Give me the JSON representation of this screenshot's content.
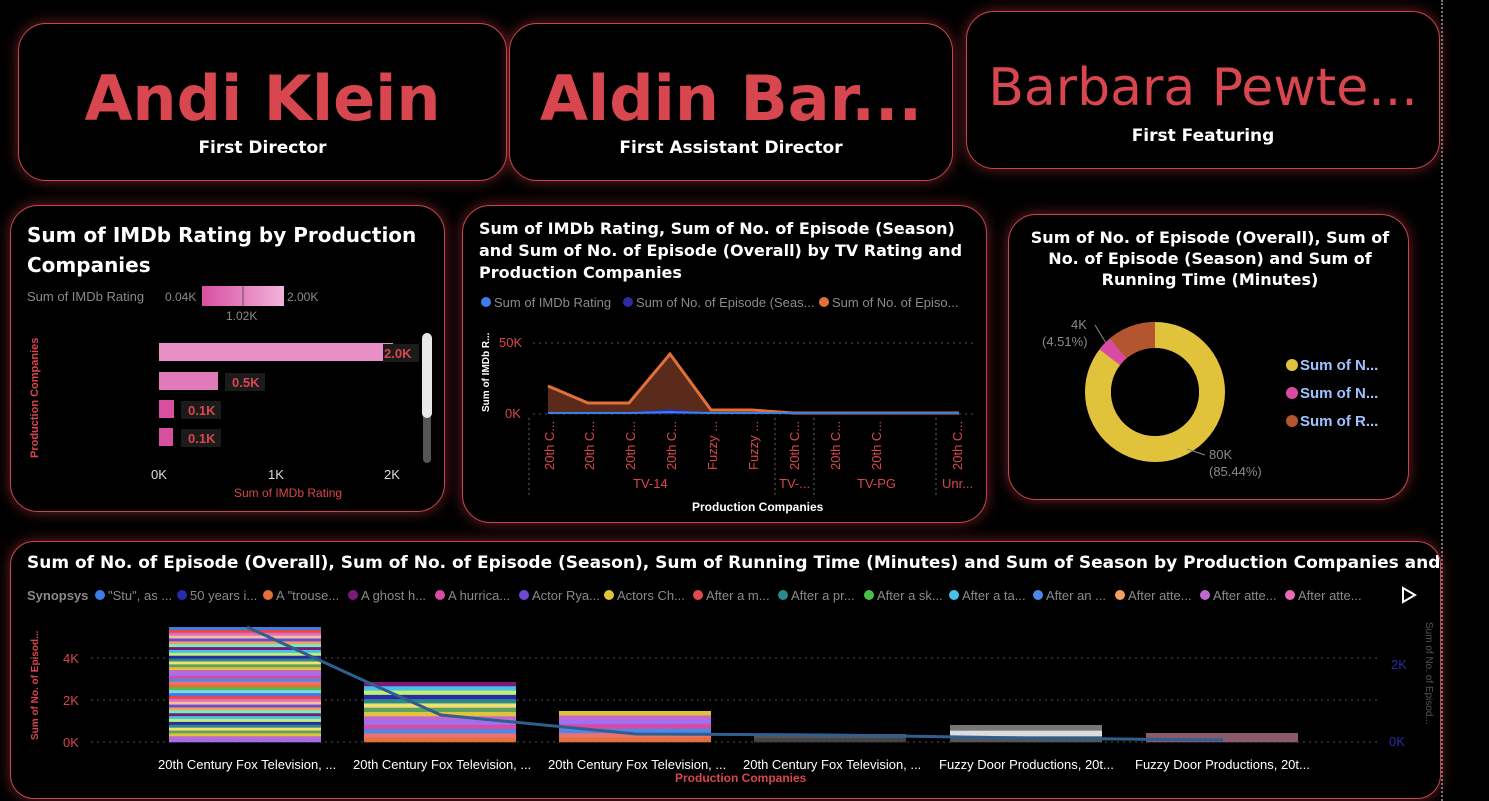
{
  "kpis": [
    {
      "value": "Andi Klein",
      "label": "First Director"
    },
    {
      "value": "Aldin Bar...",
      "label": "First Assistant Director"
    },
    {
      "value": "Barbara Pewte...",
      "label": "First Featuring"
    }
  ],
  "imdb_bar": {
    "title": "Sum of IMDb Rating by Production Companies",
    "gradient_legend": {
      "label": "Sum of IMDb Rating",
      "min": "0.04K",
      "mid": "1.02K",
      "max": "2.00K"
    },
    "ylabel": "Production Companies",
    "xlabel": "Sum of IMDb Rating",
    "xticks": [
      "0K",
      "1K",
      "2K"
    ],
    "data_labels": [
      "2.0K",
      "0.5K",
      "0.1K",
      "0.1K"
    ],
    "colors": {
      "bar_light": "#e98fc8",
      "bar_dark": "#d84fa0"
    }
  },
  "area_chart": {
    "title": "Sum of IMDb Rating, Sum of No. of Episode (Season) and Sum of No. of Episode (Overall) by TV Rating and Production Companies",
    "legend": [
      {
        "label": "Sum of IMDb Rating",
        "color": "#3a7ee8"
      },
      {
        "label": "Sum of No. of Episode (Seas...",
        "color": "#2c2ca0"
      },
      {
        "label": "Sum of No. of Episo...",
        "color": "#e2703a"
      }
    ],
    "ylabel": "Sum of IMDb R...",
    "yticks": [
      "50K",
      "0K"
    ],
    "xlabel": "Production Companies",
    "x_tick_labels": [
      "20th C...",
      "20th C...",
      "20th C...",
      "20th C...",
      "Fuzzy ...",
      "Fuzzy ...",
      "20th C...",
      "20th C...",
      "20th C...",
      "20th C..."
    ],
    "groups": [
      "TV-14",
      "TV-...",
      "TV-PG",
      "Unr..."
    ]
  },
  "donut": {
    "title": "Sum of No. of Episode (Overall), Sum of No. of Episode (Season) and Sum of Running Time (Minutes)",
    "slice_labels": [
      {
        "value": "4K",
        "pct": "(4.51%)"
      },
      {
        "value": "80K",
        "pct": "(85.44%)"
      }
    ],
    "legend": [
      {
        "label": "Sum of N...",
        "color": "#e0c33a"
      },
      {
        "label": "Sum of N...",
        "color": "#d94aa3"
      },
      {
        "label": "Sum of R...",
        "color": "#b3552f"
      }
    ]
  },
  "bottom_chart": {
    "title": "Sum of No. of Episode (Overall), Sum of No. of Episode (Season), Sum of Running Time (Minutes) and Sum of Season by Production Companies and Synopsys",
    "legend_title": "Synopsys",
    "legend": [
      {
        "label": "\"Stu\", as ...",
        "color": "#3a7ee8"
      },
      {
        "label": "50 years i...",
        "color": "#2a2aa8"
      },
      {
        "label": "A \"trouse...",
        "color": "#e2703a"
      },
      {
        "label": "A ghost h...",
        "color": "#7a1a7a"
      },
      {
        "label": "A hurrica...",
        "color": "#d94aa3"
      },
      {
        "label": "Actor Rya...",
        "color": "#6a4ad0"
      },
      {
        "label": "Actors Ch...",
        "color": "#e0c33a"
      },
      {
        "label": "After a m...",
        "color": "#e04a4a"
      },
      {
        "label": "After a pr...",
        "color": "#2a8a8a"
      },
      {
        "label": "After a sk...",
        "color": "#4ac04a"
      },
      {
        "label": "After a ta...",
        "color": "#4ac0e8"
      },
      {
        "label": "After an ...",
        "color": "#4a8ae8"
      },
      {
        "label": "After atte...",
        "color": "#f0a060"
      },
      {
        "label": "After atte...",
        "color": "#c06ad0"
      },
      {
        "label": "After atte...",
        "color": "#e86ab8"
      }
    ],
    "ylabel": "Sum of No. of Episod...",
    "yticks": [
      "4K",
      "2K",
      "0K"
    ],
    "y2label": "Sum of No. of Episod...",
    "y2ticks": [
      "2K",
      "0K"
    ],
    "xlabel": "Production Companies",
    "categories": [
      "20th Century Fox Television, ...",
      "20th Century Fox Television, ...",
      "20th Century Fox Television, ...",
      "20th Century Fox Television, ...",
      "Fuzzy Door Productions, 20t...",
      "Fuzzy Door Productions, 20t..."
    ]
  }
}
